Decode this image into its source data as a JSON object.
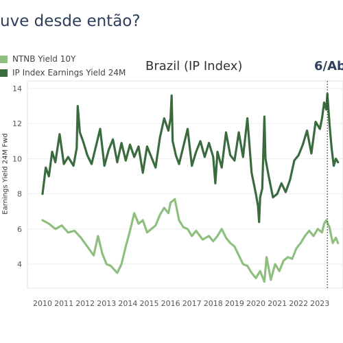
{
  "headline": "uve desde então?",
  "chart_data": {
    "type": "line",
    "title": "Brazil (IP Index)",
    "annotation": "6/Ab",
    "ylabel": "Earnings Yield 24M Fwd",
    "ylim": [
      2.5,
      14.3
    ],
    "y_ticks": [
      4,
      6,
      8,
      10,
      12,
      14
    ],
    "x_ticks": [
      "2010",
      "2011",
      "2012",
      "2013",
      "2014",
      "2015",
      "2016",
      "2017",
      "2018",
      "2019",
      "2020",
      "2021",
      "2022",
      "2023"
    ],
    "xlim": [
      2010.0,
      2023.85
    ],
    "marker_x": 2023.35,
    "legend": [
      {
        "name": "NTNB Yield 10Y",
        "color": "#8fbf7f"
      },
      {
        "name": "IP Index Earnings Yield 24M",
        "color": "#3a6b3e"
      }
    ],
    "series": [
      {
        "name": "IP Index Earnings Yield 24M",
        "color": "#3a6b3e",
        "x": [
          2010.0,
          2010.15,
          2010.3,
          2010.45,
          2010.6,
          2010.8,
          2011.0,
          2011.2,
          2011.45,
          2011.6,
          2011.65,
          2011.75,
          2011.9,
          2012.1,
          2012.3,
          2012.5,
          2012.7,
          2012.9,
          2013.1,
          2013.3,
          2013.5,
          2013.7,
          2013.9,
          2014.1,
          2014.3,
          2014.5,
          2014.7,
          2014.9,
          2015.1,
          2015.3,
          2015.5,
          2015.7,
          2015.9,
          2016.0,
          2016.05,
          2016.1,
          2016.25,
          2016.4,
          2016.6,
          2016.8,
          2017.0,
          2017.2,
          2017.4,
          2017.6,
          2017.8,
          2018.0,
          2018.1,
          2018.2,
          2018.4,
          2018.6,
          2018.8,
          2019.0,
          2019.2,
          2019.4,
          2019.6,
          2019.8,
          2020.0,
          2020.1,
          2020.15,
          2020.2,
          2020.3,
          2020.4,
          2020.45,
          2020.6,
          2020.8,
          2021.0,
          2021.2,
          2021.4,
          2021.6,
          2021.8,
          2022.0,
          2022.2,
          2022.4,
          2022.6,
          2022.8,
          2023.0,
          2023.1,
          2023.2,
          2023.3,
          2023.35,
          2023.45,
          2023.55,
          2023.65,
          2023.75,
          2023.85
        ],
        "y": [
          8.0,
          9.5,
          9.0,
          10.4,
          9.8,
          11.4,
          9.7,
          10.1,
          9.6,
          10.6,
          13.0,
          11.5,
          11.0,
          10.2,
          9.7,
          10.7,
          11.7,
          9.6,
          10.5,
          11.1,
          9.8,
          10.9,
          9.9,
          10.8,
          10.1,
          10.7,
          9.2,
          10.7,
          10.1,
          9.5,
          11.2,
          12.3,
          11.6,
          12.3,
          13.6,
          11.0,
          10.2,
          9.7,
          10.7,
          11.7,
          9.6,
          10.4,
          11.0,
          10.1,
          10.9,
          10.1,
          8.6,
          10.4,
          9.5,
          11.5,
          10.2,
          9.9,
          11.5,
          10.1,
          12.3,
          9.2,
          8.0,
          7.3,
          6.4,
          7.8,
          8.3,
          12.4,
          10.0,
          9.0,
          7.8,
          8.0,
          8.6,
          8.1,
          8.8,
          9.9,
          10.2,
          10.8,
          11.6,
          10.3,
          12.1,
          11.7,
          12.3,
          13.2,
          12.8,
          13.7,
          12.0,
          10.6,
          9.6,
          10.0,
          9.8
        ]
      },
      {
        "name": "NTNB Yield 10Y",
        "color": "#8fbf7f",
        "x": [
          2010.0,
          2010.3,
          2010.6,
          2010.9,
          2011.2,
          2011.5,
          2011.8,
          2012.1,
          2012.4,
          2012.6,
          2012.8,
          2013.0,
          2013.2,
          2013.5,
          2013.7,
          2013.9,
          2014.1,
          2014.3,
          2014.5,
          2014.7,
          2014.9,
          2015.1,
          2015.3,
          2015.5,
          2015.7,
          2015.9,
          2016.0,
          2016.2,
          2016.4,
          2016.6,
          2016.8,
          2017.0,
          2017.2,
          2017.5,
          2017.8,
          2018.0,
          2018.2,
          2018.4,
          2018.6,
          2018.8,
          2019.0,
          2019.2,
          2019.4,
          2019.6,
          2019.8,
          2020.0,
          2020.2,
          2020.4,
          2020.5,
          2020.7,
          2020.9,
          2021.1,
          2021.3,
          2021.5,
          2021.7,
          2021.9,
          2022.1,
          2022.3,
          2022.5,
          2022.7,
          2022.9,
          2023.1,
          2023.2,
          2023.3,
          2023.45,
          2023.6,
          2023.75,
          2023.85
        ],
        "y": [
          6.5,
          6.3,
          6.0,
          6.2,
          5.8,
          5.9,
          5.5,
          5.0,
          4.5,
          5.6,
          4.6,
          4.0,
          3.9,
          3.5,
          4.0,
          5.0,
          5.9,
          6.9,
          6.3,
          6.5,
          5.8,
          6.0,
          6.2,
          6.8,
          7.2,
          6.9,
          7.5,
          7.7,
          6.5,
          6.1,
          6.0,
          5.6,
          5.9,
          5.4,
          5.6,
          5.3,
          5.6,
          6.0,
          5.5,
          5.2,
          5.0,
          4.5,
          4.0,
          3.9,
          3.5,
          3.2,
          3.6,
          3.0,
          4.4,
          3.1,
          4.0,
          3.6,
          4.2,
          4.4,
          4.3,
          4.9,
          5.2,
          5.6,
          5.9,
          5.6,
          6.0,
          5.8,
          6.3,
          6.5,
          6.1,
          5.2,
          5.5,
          5.2
        ]
      }
    ]
  }
}
